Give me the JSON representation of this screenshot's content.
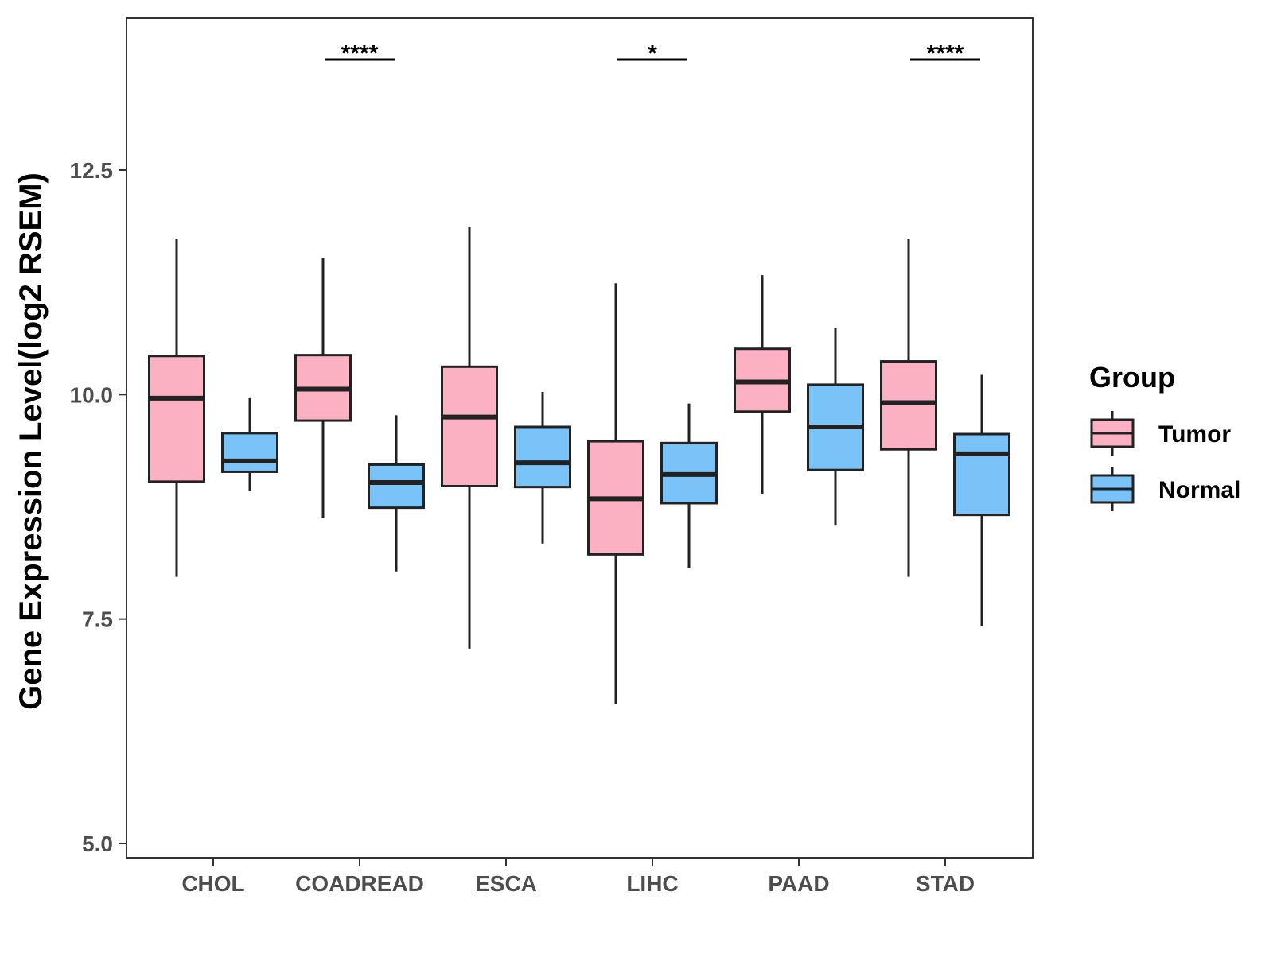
{
  "chart_data": {
    "type": "boxplot",
    "title": "",
    "xlabel": "",
    "ylabel": "Gene Expression Level(log2 RSEM)",
    "ylim": [
      4.85,
      14.2
    ],
    "yticks": [
      5.0,
      7.5,
      10.0,
      12.5
    ],
    "ytick_labels": [
      "5.0",
      "7.5",
      "10.0",
      "12.5"
    ],
    "categories": [
      "CHOL",
      "COADREAD",
      "ESCA",
      "LIHC",
      "PAAD",
      "STAD"
    ],
    "legend": {
      "title": "Group",
      "position": "right",
      "entries": [
        {
          "name": "Tumor",
          "color": "#fbb1c2"
        },
        {
          "name": "Normal",
          "color": "#7ac3f8"
        }
      ]
    },
    "series": [
      {
        "name": "Tumor",
        "color": "#fbb1c2",
        "boxes": [
          {
            "category": "CHOL",
            "min": 7.97,
            "q1": 9.03,
            "median": 9.96,
            "q3": 10.43,
            "max": 11.73
          },
          {
            "category": "COADREAD",
            "min": 8.63,
            "q1": 9.71,
            "median": 10.06,
            "q3": 10.44,
            "max": 11.52
          },
          {
            "category": "ESCA",
            "min": 7.17,
            "q1": 8.98,
            "median": 9.75,
            "q3": 10.31,
            "max": 11.87
          },
          {
            "category": "LIHC",
            "min": 6.55,
            "q1": 8.22,
            "median": 8.84,
            "q3": 9.48,
            "max": 11.24
          },
          {
            "category": "PAAD",
            "min": 8.89,
            "q1": 9.81,
            "median": 10.14,
            "q3": 10.51,
            "max": 11.33
          },
          {
            "category": "STAD",
            "min": 7.97,
            "q1": 9.39,
            "median": 9.91,
            "q3": 10.37,
            "max": 11.73
          }
        ]
      },
      {
        "name": "Normal",
        "color": "#7ac3f8",
        "boxes": [
          {
            "category": "CHOL",
            "min": 8.93,
            "q1": 9.14,
            "median": 9.26,
            "q3": 9.57,
            "max": 9.96
          },
          {
            "category": "COADREAD",
            "min": 8.03,
            "q1": 8.74,
            "median": 9.02,
            "q3": 9.22,
            "max": 9.77
          },
          {
            "category": "ESCA",
            "min": 8.34,
            "q1": 8.97,
            "median": 9.24,
            "q3": 9.64,
            "max": 10.03
          },
          {
            "category": "LIHC",
            "min": 8.07,
            "q1": 8.79,
            "median": 9.11,
            "q3": 9.46,
            "max": 9.9
          },
          {
            "category": "PAAD",
            "min": 8.54,
            "q1": 9.16,
            "median": 9.64,
            "q3": 10.11,
            "max": 10.74
          },
          {
            "category": "STAD",
            "min": 7.42,
            "q1": 8.66,
            "median": 9.34,
            "q3": 9.56,
            "max": 10.22
          }
        ]
      }
    ],
    "annotations": [
      {
        "category": "COADREAD",
        "label": "****"
      },
      {
        "category": "LIHC",
        "label": "*"
      },
      {
        "category": "STAD",
        "label": "****"
      }
    ]
  }
}
